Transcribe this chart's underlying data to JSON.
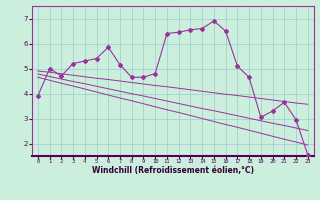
{
  "xlabel": "Windchill (Refroidissement éolien,°C)",
  "bg_color": "#cceedd",
  "line_color": "#993399",
  "grid_color": "#99cccc",
  "x": [
    0,
    1,
    2,
    3,
    4,
    5,
    6,
    7,
    8,
    9,
    10,
    11,
    12,
    13,
    14,
    15,
    16,
    17,
    18,
    19,
    20,
    21,
    22,
    23
  ],
  "y_main": [
    3.9,
    5.0,
    4.7,
    5.2,
    5.3,
    5.4,
    5.85,
    5.15,
    4.65,
    4.65,
    4.8,
    6.4,
    6.45,
    6.55,
    6.6,
    6.9,
    6.5,
    5.1,
    4.65,
    3.05,
    3.3,
    3.65,
    2.95,
    1.55
  ],
  "y_trend1": [
    4.9,
    4.85,
    4.79,
    4.73,
    4.67,
    4.61,
    4.56,
    4.5,
    4.44,
    4.38,
    4.32,
    4.27,
    4.21,
    4.15,
    4.09,
    4.03,
    3.97,
    3.92,
    3.86,
    3.8,
    3.74,
    3.68,
    3.62,
    3.57
  ],
  "y_trend2": [
    4.78,
    4.68,
    4.58,
    4.48,
    4.39,
    4.29,
    4.19,
    4.09,
    3.99,
    3.9,
    3.8,
    3.7,
    3.6,
    3.5,
    3.4,
    3.31,
    3.21,
    3.11,
    3.01,
    2.91,
    2.81,
    2.72,
    2.62,
    2.52
  ],
  "y_trend3": [
    4.65,
    4.53,
    4.41,
    4.3,
    4.18,
    4.06,
    3.94,
    3.82,
    3.71,
    3.59,
    3.47,
    3.35,
    3.24,
    3.12,
    3.0,
    2.88,
    2.76,
    2.65,
    2.53,
    2.41,
    2.29,
    2.17,
    2.06,
    1.94
  ],
  "ylim": [
    1.5,
    7.5
  ],
  "xlim": [
    -0.5,
    23.5
  ],
  "yticks": [
    2,
    3,
    4,
    5,
    6,
    7
  ],
  "xticks": [
    0,
    1,
    2,
    3,
    4,
    5,
    6,
    7,
    8,
    9,
    10,
    11,
    12,
    13,
    14,
    15,
    16,
    17,
    18,
    19,
    20,
    21,
    22,
    23
  ]
}
